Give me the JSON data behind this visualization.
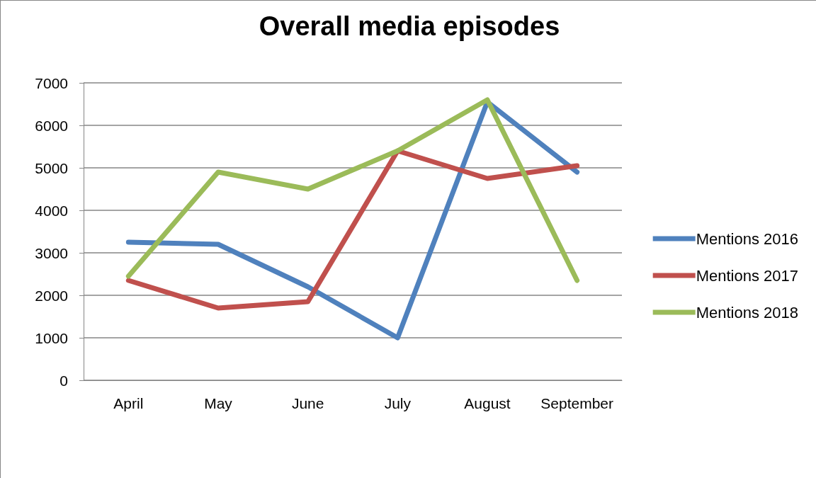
{
  "chart_data": {
    "type": "line",
    "title": "Overall media episodes",
    "categories": [
      "April",
      "May",
      "June",
      "July",
      "August",
      "September"
    ],
    "series": [
      {
        "name": "Mentions 2016",
        "color": "#4f81bd",
        "values": [
          3250,
          3200,
          2200,
          1000,
          6550,
          4900
        ]
      },
      {
        "name": "Mentions 2017",
        "color": "#c0504d",
        "values": [
          2350,
          1700,
          1850,
          5400,
          4750,
          5050
        ]
      },
      {
        "name": "Mentions 2018",
        "color": "#9bbb59",
        "values": [
          2450,
          4900,
          4500,
          5400,
          6600,
          2350
        ]
      }
    ],
    "ylim": [
      0,
      7000
    ],
    "yticks": [
      0,
      1000,
      2000,
      3000,
      4000,
      5000,
      6000,
      7000
    ],
    "grid": "y",
    "legend": "right",
    "marker": "none",
    "line_style": "solid"
  }
}
